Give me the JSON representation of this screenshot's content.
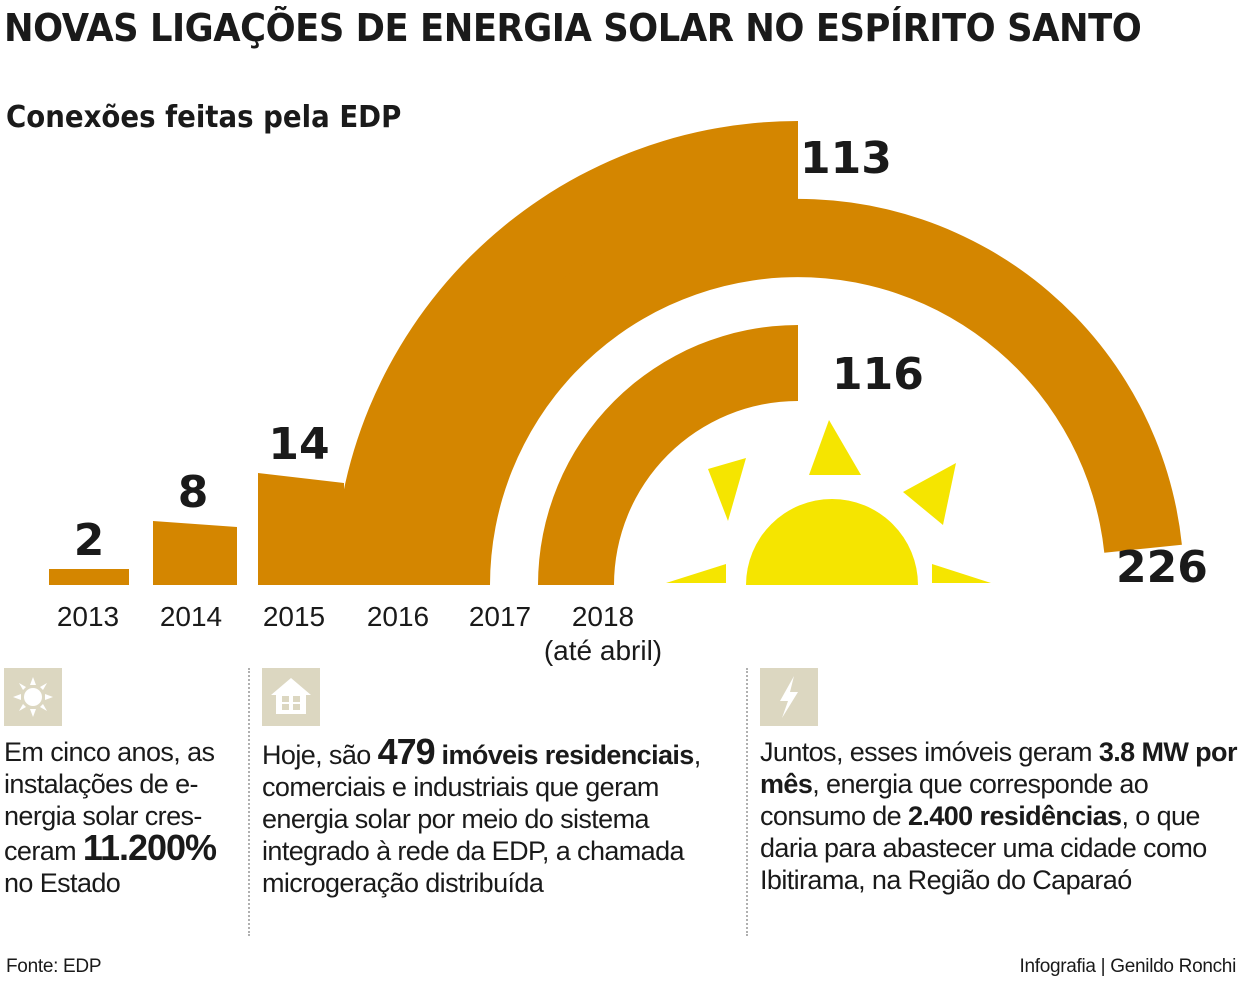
{
  "header": {
    "title": "NOVAS LIGAÇÕES DE ENERGIA SOLAR NO ESPÍRITO SANTO",
    "subtitle": "Conexões feitas pela EDP"
  },
  "chart_data": {
    "type": "bar",
    "title": "NOVAS LIGAÇÕES DE ENERGIA SOLAR NO ESPÍRITO SANTO",
    "subtitle": "Conexões feitas pela EDP",
    "categories": [
      "2013",
      "2014",
      "2015",
      "2016",
      "2017",
      "2018 (até abril)"
    ],
    "category_labels": [
      [
        "2013"
      ],
      [
        "2014"
      ],
      [
        "2015"
      ],
      [
        "2016"
      ],
      [
        "2017"
      ],
      [
        "2018",
        "(até abril)"
      ]
    ],
    "values": [
      2,
      8,
      14,
      113,
      226,
      116
    ],
    "value_labels": [
      "2",
      "8",
      "14",
      "113",
      "226",
      "116"
    ],
    "bar_color": "#d48600",
    "sun_color": "#f5e500"
  },
  "info": [
    {
      "icon": "sun-icon",
      "parts": [
        {
          "t": "Em cinco anos, as instalações de e-nergia solar cres-ceram ",
          "s": ""
        },
        {
          "t": "11.200%",
          "s": "big"
        },
        {
          "t": " no Estado",
          "s": ""
        }
      ]
    },
    {
      "icon": "house-icon",
      "parts": [
        {
          "t": "Hoje, são ",
          "s": ""
        },
        {
          "t": "479",
          "s": "big"
        },
        {
          "t": " imóveis residenciais",
          "s": "b"
        },
        {
          "t": ", comerciais e industriais que geram energia solar por meio do sistema integrado à rede da EDP, a chamada microgeração distribuída",
          "s": ""
        }
      ]
    },
    {
      "icon": "lightning-icon",
      "parts": [
        {
          "t": "Juntos, esses imóveis geram ",
          "s": ""
        },
        {
          "t": "3.8 MW por mês",
          "s": "b"
        },
        {
          "t": ", energia que corresponde ao consumo de ",
          "s": ""
        },
        {
          "t": "2.400 residências",
          "s": "b"
        },
        {
          "t": ", o que daria para abastecer uma cidade como Ibitirama, na Região do Caparaó",
          "s": ""
        }
      ]
    }
  ],
  "footer": {
    "source": "Fonte: EDP",
    "credit": "Infografia | Genildo Ronchi"
  }
}
